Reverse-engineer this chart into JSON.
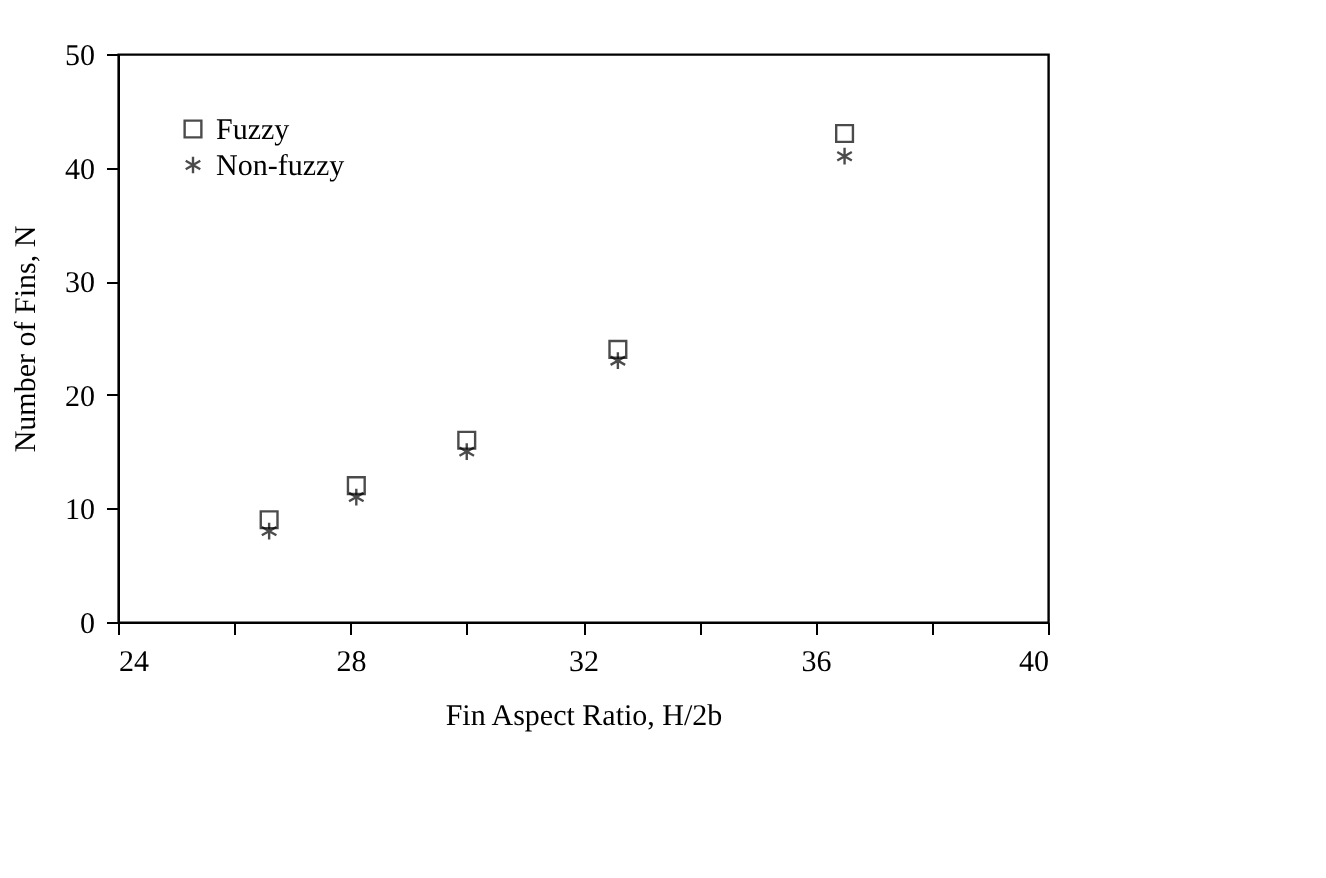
{
  "chart_data": {
    "type": "scatter",
    "xlabel": "Fin Aspect Ratio, H/2b",
    "ylabel": "Number of Fins, N",
    "x": [
      26.6,
      28.1,
      30.0,
      32.6,
      36.5
    ],
    "series": [
      {
        "name": "Fuzzy",
        "color": "#000000",
        "marker": "square",
        "values": [
          9,
          12,
          16,
          24,
          43
        ]
      },
      {
        "name": "Non-fuzzy",
        "color": "#000000",
        "marker": "cross",
        "values": [
          8,
          11,
          15,
          23,
          41
        ]
      }
    ],
    "xlim": [
      24,
      40
    ],
    "ylim": [
      0,
      50
    ],
    "xticks": [
      24,
      {
        "value": 26,
        "label": null
      },
      28,
      {
        "value": 30,
        "label": null
      },
      32,
      {
        "value": 34,
        "label": null
      },
      36,
      {
        "value": 38,
        "label": null
      },
      40
    ],
    "yticks": [
      0,
      10,
      20,
      30,
      40,
      50
    ],
    "grid": false,
    "legend": "top left"
  }
}
